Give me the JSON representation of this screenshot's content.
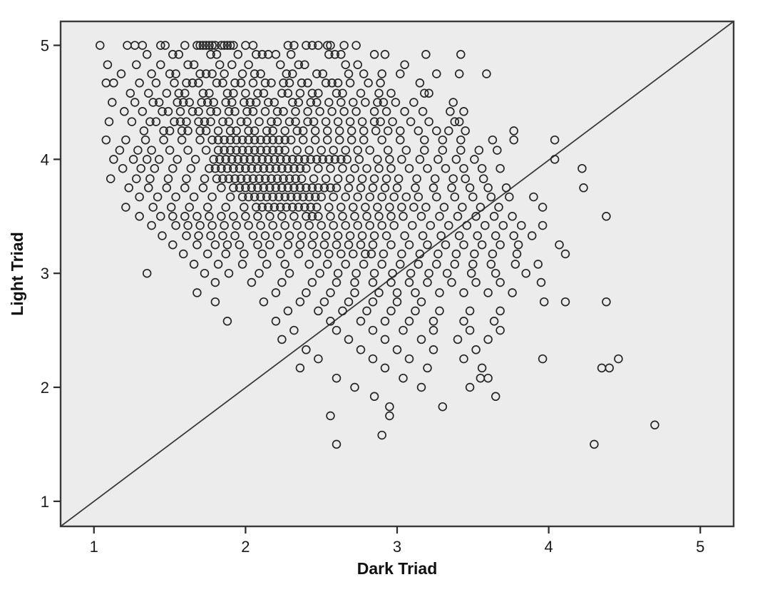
{
  "chart_data": {
    "type": "scatter",
    "title": "",
    "xlabel": "Dark Triad",
    "ylabel": "Light Triad",
    "x_axis": {
      "min": 0.78,
      "max": 5.22,
      "ticks": [
        1,
        2,
        3,
        4,
        5
      ]
    },
    "y_axis": {
      "min": 0.78,
      "max": 5.21,
      "ticks": [
        1,
        2,
        3,
        4,
        5
      ]
    },
    "grid": false,
    "legend": false,
    "plot_background": "#ececec",
    "frame_color": "#3a3a3a",
    "tick_color": "#2b2b2b",
    "tick_label_color": "#1a1a1a",
    "marker": {
      "shape": "open-circle",
      "radius_px": 5.4,
      "stroke": "#262626",
      "stroke_width": 1.7,
      "fill": "none"
    },
    "identity_line": {
      "present": true,
      "equation": "y = x",
      "color": "#3a3a3a",
      "width": 1.8
    },
    "n_points": 796,
    "rows": [
      {
        "y": 5.0,
        "x": [
          1.04,
          1.22,
          1.27,
          1.32,
          1.44,
          1.47,
          1.6,
          1.68,
          1.7,
          1.72,
          1.74,
          1.76,
          1.78,
          1.8,
          1.84,
          1.86,
          1.88,
          1.9,
          1.92,
          2.0,
          2.05,
          2.28,
          2.32,
          2.4,
          2.44,
          2.48,
          2.54,
          2.56,
          2.65,
          2.73
        ]
      },
      {
        "y": 4.92,
        "x": [
          1.35,
          1.52,
          1.56,
          1.77,
          1.81,
          1.95,
          2.07,
          2.11,
          2.15,
          2.2,
          2.3,
          2.55,
          2.59,
          2.63,
          2.85,
          2.92,
          3.19,
          3.42
        ]
      },
      {
        "y": 4.83,
        "x": [
          1.09,
          1.28,
          1.44,
          1.62,
          1.66,
          1.83,
          1.91,
          2.02,
          2.23,
          2.35,
          2.39,
          2.66,
          2.74,
          3.05
        ]
      },
      {
        "y": 4.75,
        "x": [
          1.18,
          1.38,
          1.5,
          1.54,
          1.7,
          1.74,
          1.78,
          1.86,
          1.98,
          2.06,
          2.1,
          2.27,
          2.31,
          2.47,
          2.51,
          2.68,
          2.78,
          2.9,
          3.02,
          3.26,
          3.41,
          3.59
        ]
      },
      {
        "y": 4.67,
        "x": [
          1.08,
          1.13,
          1.3,
          1.41,
          1.53,
          1.61,
          1.65,
          1.69,
          1.81,
          1.85,
          1.93,
          1.97,
          2.05,
          2.13,
          2.17,
          2.25,
          2.29,
          2.37,
          2.41,
          2.53,
          2.57,
          2.61,
          2.69,
          2.81,
          2.89,
          3.15
        ]
      },
      {
        "y": 4.58,
        "x": [
          1.24,
          1.36,
          1.48,
          1.56,
          1.6,
          1.72,
          1.76,
          1.88,
          1.92,
          2.0,
          2.08,
          2.12,
          2.24,
          2.28,
          2.36,
          2.44,
          2.48,
          2.6,
          2.64,
          2.76,
          2.88,
          2.96,
          3.18,
          3.21
        ]
      },
      {
        "y": 4.5,
        "x": [
          1.12,
          1.27,
          1.39,
          1.43,
          1.55,
          1.59,
          1.63,
          1.71,
          1.75,
          1.79,
          1.87,
          1.91,
          1.99,
          2.03,
          2.07,
          2.15,
          2.19,
          2.31,
          2.35,
          2.43,
          2.47,
          2.55,
          2.63,
          2.71,
          2.79,
          2.87,
          2.91,
          2.99,
          3.11,
          3.37
        ]
      },
      {
        "y": 4.42,
        "x": [
          1.2,
          1.32,
          1.45,
          1.49,
          1.57,
          1.65,
          1.69,
          1.77,
          1.81,
          1.89,
          1.93,
          2.01,
          2.05,
          2.13,
          2.21,
          2.25,
          2.33,
          2.41,
          2.49,
          2.57,
          2.65,
          2.73,
          2.85,
          2.93,
          3.05,
          3.17,
          3.35,
          3.44
        ]
      },
      {
        "y": 4.33,
        "x": [
          1.1,
          1.25,
          1.37,
          1.41,
          1.53,
          1.57,
          1.61,
          1.69,
          1.73,
          1.77,
          1.85,
          1.89,
          1.97,
          2.01,
          2.09,
          2.17,
          2.21,
          2.29,
          2.33,
          2.41,
          2.45,
          2.53,
          2.61,
          2.69,
          2.77,
          2.85,
          2.89,
          2.97,
          3.09,
          3.21,
          3.38,
          3.41
        ]
      },
      {
        "y": 4.25,
        "x": [
          1.33,
          1.46,
          1.5,
          1.58,
          1.62,
          1.7,
          1.74,
          1.82,
          1.9,
          1.94,
          2.02,
          2.06,
          2.14,
          2.18,
          2.26,
          2.34,
          2.38,
          2.46,
          2.54,
          2.62,
          2.7,
          2.78,
          2.86,
          2.94,
          3.02,
          3.14,
          3.26,
          3.34,
          3.45,
          3.77
        ]
      },
      {
        "y": 4.17,
        "x": [
          1.08,
          1.21,
          1.34,
          1.46,
          1.58,
          1.7,
          1.78,
          1.82,
          1.86,
          1.9,
          1.94,
          1.98,
          2.02,
          2.06,
          2.1,
          2.14,
          2.18,
          2.22,
          2.26,
          2.3,
          2.38,
          2.46,
          2.54,
          2.62,
          2.7,
          2.78,
          2.9,
          3.02,
          3.18,
          3.3,
          3.42,
          3.63,
          3.77,
          4.04
        ]
      },
      {
        "y": 4.08,
        "x": [
          1.17,
          1.29,
          1.38,
          1.5,
          1.62,
          1.74,
          1.82,
          1.86,
          1.9,
          1.94,
          1.98,
          2.02,
          2.06,
          2.1,
          2.14,
          2.18,
          2.22,
          2.26,
          2.34,
          2.42,
          2.5,
          2.58,
          2.66,
          2.74,
          2.82,
          2.94,
          3.06,
          3.18,
          3.3,
          3.42,
          3.54,
          3.66
        ]
      },
      {
        "y": 4.0,
        "x": [
          1.13,
          1.26,
          1.35,
          1.43,
          1.55,
          1.67,
          1.79,
          1.83,
          1.87,
          1.91,
          1.95,
          1.99,
          2.03,
          2.07,
          2.11,
          2.15,
          2.19,
          2.23,
          2.27,
          2.31,
          2.35,
          2.39,
          2.43,
          2.47,
          2.51,
          2.55,
          2.59,
          2.63,
          2.67,
          2.75,
          2.87,
          2.95,
          3.03,
          3.15,
          3.27,
          3.39,
          3.51,
          4.04
        ]
      },
      {
        "y": 3.92,
        "x": [
          1.19,
          1.31,
          1.4,
          1.52,
          1.64,
          1.76,
          1.8,
          1.84,
          1.88,
          1.92,
          1.96,
          2.0,
          2.04,
          2.08,
          2.12,
          2.16,
          2.2,
          2.24,
          2.28,
          2.32,
          2.36,
          2.4,
          2.48,
          2.56,
          2.64,
          2.72,
          2.8,
          2.88,
          2.96,
          3.08,
          3.2,
          3.32,
          3.44,
          3.56,
          3.68,
          4.22
        ]
      },
      {
        "y": 3.83,
        "x": [
          1.11,
          1.28,
          1.37,
          1.49,
          1.61,
          1.73,
          1.81,
          1.85,
          1.89,
          1.93,
          1.97,
          2.01,
          2.05,
          2.09,
          2.13,
          2.17,
          2.21,
          2.25,
          2.29,
          2.33,
          2.37,
          2.45,
          2.53,
          2.61,
          2.69,
          2.77,
          2.85,
          2.93,
          3.01,
          3.13,
          3.25,
          3.37,
          3.45,
          3.57
        ]
      },
      {
        "y": 3.75,
        "x": [
          1.23,
          1.36,
          1.48,
          1.6,
          1.72,
          1.84,
          1.92,
          1.96,
          2.0,
          2.04,
          2.08,
          2.12,
          2.16,
          2.2,
          2.24,
          2.28,
          2.32,
          2.36,
          2.4,
          2.44,
          2.48,
          2.52,
          2.56,
          2.6,
          2.68,
          2.76,
          2.84,
          2.92,
          3.0,
          3.12,
          3.24,
          3.36,
          3.48,
          3.6,
          3.72,
          4.23
        ]
      },
      {
        "y": 3.67,
        "x": [
          1.3,
          1.42,
          1.54,
          1.66,
          1.78,
          1.9,
          1.98,
          2.02,
          2.06,
          2.1,
          2.14,
          2.18,
          2.22,
          2.26,
          2.3,
          2.34,
          2.38,
          2.42,
          2.46,
          2.5,
          2.58,
          2.66,
          2.74,
          2.82,
          2.9,
          2.98,
          3.06,
          3.14,
          3.26,
          3.38,
          3.5,
          3.62,
          3.74,
          3.9
        ]
      },
      {
        "y": 3.58,
        "x": [
          1.21,
          1.39,
          1.51,
          1.63,
          1.75,
          1.87,
          1.99,
          2.07,
          2.11,
          2.15,
          2.19,
          2.23,
          2.27,
          2.31,
          2.35,
          2.39,
          2.43,
          2.47,
          2.55,
          2.63,
          2.71,
          2.79,
          2.87,
          2.95,
          3.03,
          3.11,
          3.19,
          3.31,
          3.43,
          3.55,
          3.67,
          3.96
        ]
      },
      {
        "y": 3.5,
        "x": [
          1.3,
          1.44,
          1.52,
          1.6,
          1.68,
          1.76,
          1.84,
          1.92,
          2.0,
          2.08,
          2.16,
          2.24,
          2.32,
          2.4,
          2.44,
          2.48,
          2.56,
          2.64,
          2.72,
          2.8,
          2.88,
          2.96,
          3.04,
          3.16,
          3.28,
          3.4,
          3.52,
          3.64,
          3.76,
          4.38
        ]
      },
      {
        "y": 3.42,
        "x": [
          1.38,
          1.54,
          1.62,
          1.7,
          1.78,
          1.86,
          1.94,
          2.02,
          2.1,
          2.18,
          2.26,
          2.34,
          2.42,
          2.5,
          2.58,
          2.66,
          2.74,
          2.82,
          2.9,
          2.98,
          3.1,
          3.22,
          3.34,
          3.46,
          3.58,
          3.7,
          3.82,
          3.96
        ]
      },
      {
        "y": 3.33,
        "x": [
          1.45,
          1.61,
          1.69,
          1.77,
          1.85,
          1.93,
          2.05,
          2.13,
          2.21,
          2.29,
          2.37,
          2.45,
          2.53,
          2.61,
          2.69,
          2.77,
          2.85,
          2.93,
          3.05,
          3.17,
          3.29,
          3.41,
          3.53,
          3.65,
          3.77,
          3.89
        ]
      },
      {
        "y": 3.25,
        "x": [
          1.52,
          1.68,
          1.8,
          1.88,
          1.96,
          2.08,
          2.16,
          2.28,
          2.36,
          2.44,
          2.52,
          2.6,
          2.68,
          2.76,
          2.84,
          2.96,
          3.08,
          3.2,
          3.32,
          3.44,
          3.56,
          3.68,
          3.8,
          4.07
        ]
      },
      {
        "y": 3.17,
        "x": [
          1.59,
          1.75,
          1.87,
          1.99,
          2.11,
          2.23,
          2.35,
          2.47,
          2.55,
          2.63,
          2.71,
          2.79,
          2.83,
          2.91,
          3.03,
          3.15,
          3.27,
          3.39,
          3.51,
          3.63,
          3.79,
          4.11
        ]
      },
      {
        "y": 3.08,
        "x": [
          1.66,
          1.82,
          1.98,
          2.14,
          2.26,
          2.42,
          2.54,
          2.66,
          2.78,
          2.9,
          3.02,
          3.14,
          3.26,
          3.38,
          3.5,
          3.62,
          3.78,
          3.93
        ]
      },
      {
        "y": 3.0,
        "x": [
          1.35,
          1.73,
          1.89,
          2.09,
          2.29,
          2.49,
          2.61,
          2.73,
          2.85,
          2.97,
          3.09,
          3.21,
          3.33,
          3.49,
          3.65,
          3.85
        ]
      },
      {
        "y": 2.92,
        "x": [
          1.8,
          2.04,
          2.24,
          2.44,
          2.6,
          2.72,
          2.84,
          2.96,
          3.08,
          3.2,
          3.36,
          3.52,
          3.68,
          3.95
        ]
      },
      {
        "y": 2.83,
        "x": [
          1.68,
          2.2,
          2.4,
          2.56,
          2.72,
          2.88,
          3.0,
          3.12,
          3.28,
          3.44,
          3.6,
          3.76
        ]
      },
      {
        "y": 2.75,
        "x": [
          1.8,
          2.12,
          2.36,
          2.52,
          2.68,
          2.84,
          3.0,
          3.16,
          3.97,
          4.11,
          4.38
        ]
      },
      {
        "y": 2.67,
        "x": [
          2.28,
          2.48,
          2.64,
          2.8,
          2.96,
          3.12,
          3.28,
          3.48,
          3.68
        ]
      },
      {
        "y": 2.58,
        "x": [
          1.88,
          2.2,
          2.56,
          2.76,
          2.92,
          3.08,
          3.24,
          3.44,
          3.64
        ]
      },
      {
        "y": 2.5,
        "x": [
          2.32,
          2.6,
          2.84,
          3.04,
          3.24,
          3.48,
          3.68
        ]
      },
      {
        "y": 2.42,
        "x": [
          2.24,
          2.68,
          2.92,
          3.16,
          3.4,
          3.6
        ]
      },
      {
        "y": 2.33,
        "x": [
          2.4,
          2.76,
          3.0,
          3.24,
          3.52
        ]
      },
      {
        "y": 2.25,
        "x": [
          2.48,
          2.84,
          3.08,
          3.44,
          3.96,
          4.46
        ]
      },
      {
        "y": 2.17,
        "x": [
          2.36,
          2.92,
          3.2,
          3.56,
          4.35,
          4.4
        ]
      },
      {
        "y": 2.08,
        "x": [
          2.6,
          3.04,
          3.55,
          3.6
        ]
      },
      {
        "y": 2.0,
        "x": [
          2.72,
          3.16,
          3.48
        ]
      },
      {
        "y": 1.92,
        "x": [
          2.85,
          3.65
        ]
      },
      {
        "y": 1.83,
        "x": [
          2.95,
          3.3
        ]
      },
      {
        "y": 1.75,
        "x": [
          2.56,
          2.95
        ]
      },
      {
        "y": 1.67,
        "x": [
          4.7
        ]
      },
      {
        "y": 1.58,
        "x": [
          2.9
        ]
      },
      {
        "y": 1.5,
        "x": [
          2.6,
          4.3
        ]
      }
    ]
  }
}
